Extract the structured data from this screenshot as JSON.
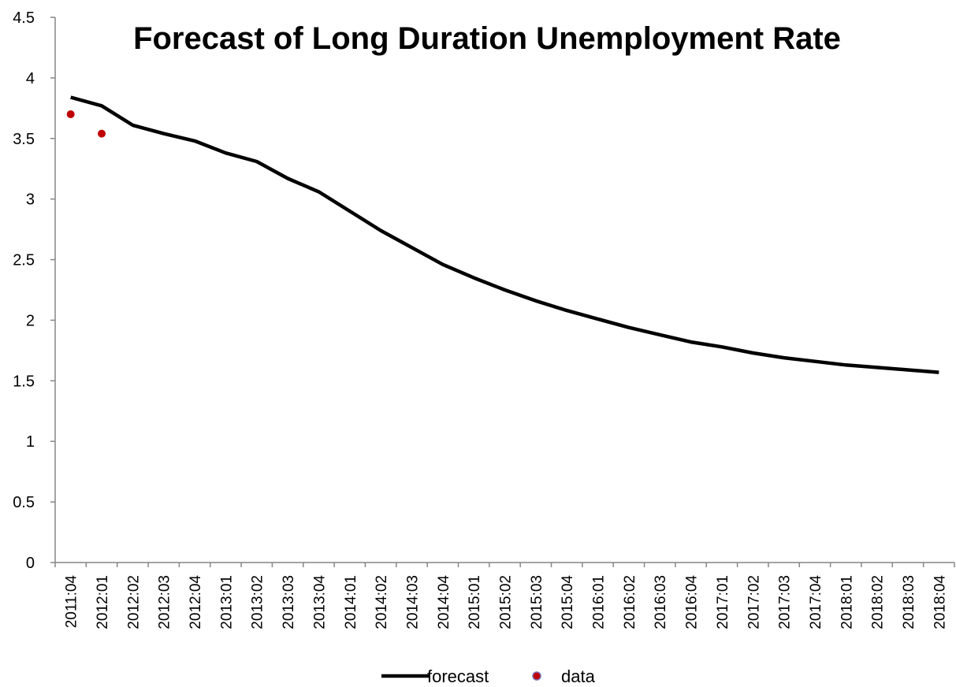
{
  "chart_data": {
    "type": "line",
    "title": "Forecast of Long Duration Unemployment Rate",
    "xlabel": "",
    "ylabel": "",
    "ylim": [
      0,
      4.5
    ],
    "yticks": [
      "0",
      "0.5",
      "1",
      "1.5",
      "2",
      "2.5",
      "3",
      "3.5",
      "4",
      "4.5"
    ],
    "categories": [
      "2011:04",
      "2012:01",
      "2012:02",
      "2012:03",
      "2012:04",
      "2013:01",
      "2013:02",
      "2013:03",
      "2013:04",
      "2014:01",
      "2014:02",
      "2014:03",
      "2014:04",
      "2015:01",
      "2015:02",
      "2015:03",
      "2015:04",
      "2016:01",
      "2016:02",
      "2016:03",
      "2016:04",
      "2017:01",
      "2017:02",
      "2017:03",
      "2017:04",
      "2018:01",
      "2018:02",
      "2018:03",
      "2018:04"
    ],
    "series": [
      {
        "name": "forecast",
        "kind": "line",
        "color": "#000000",
        "values": [
          3.84,
          3.77,
          3.61,
          3.54,
          3.48,
          3.38,
          3.31,
          3.17,
          3.06,
          2.9,
          2.74,
          2.6,
          2.46,
          2.35,
          2.25,
          2.16,
          2.08,
          2.01,
          1.94,
          1.88,
          1.82,
          1.78,
          1.73,
          1.69,
          1.66,
          1.63,
          1.61,
          1.59,
          1.57
        ]
      },
      {
        "name": "data",
        "kind": "scatter",
        "color": "#c00000",
        "values": [
          3.7,
          3.54
        ]
      }
    ],
    "legend": {
      "position": "bottom-center"
    },
    "grid": false
  }
}
